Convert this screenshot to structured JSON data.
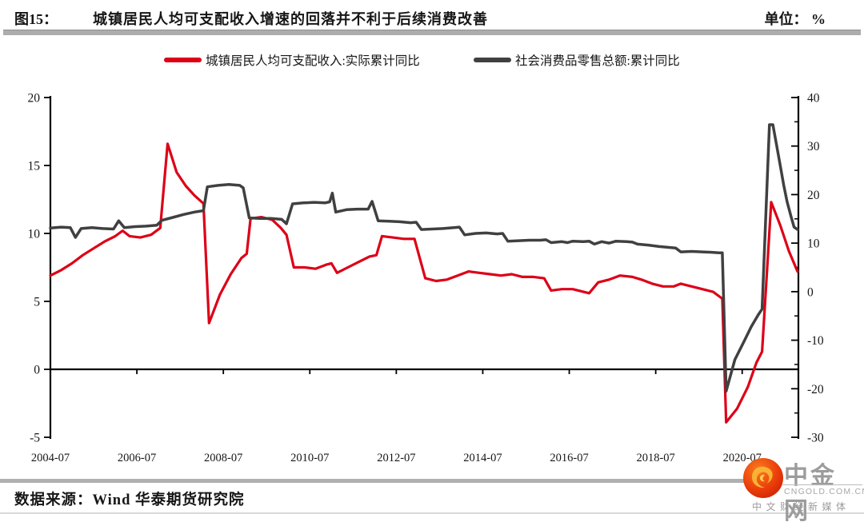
{
  "header": {
    "figure_label": "图15：",
    "title": "城镇居民人均可支配收入增速的回落并不利于后续消费改善",
    "unit_label": "单位： %"
  },
  "legend": {
    "items": [
      {
        "label": "城镇居民人均可支配收入:实际累计同比",
        "color": "#dd0017"
      },
      {
        "label": "社会消费品零售总额:累计同比",
        "color": "#404040"
      }
    ]
  },
  "chart_data": {
    "type": "line",
    "title": "城镇居民人均可支配收入增速的回落并不利于后续消费改善",
    "unit": "%",
    "x_min": 2004.5,
    "x_max": 2021.8,
    "x_ticks": [
      {
        "t": 2004.5,
        "label": "2004-07"
      },
      {
        "t": 2006.5,
        "label": "2006-07"
      },
      {
        "t": 2008.5,
        "label": "2008-07"
      },
      {
        "t": 2010.5,
        "label": "2010-07"
      },
      {
        "t": 2012.5,
        "label": "2012-07"
      },
      {
        "t": 2014.5,
        "label": "2014-07"
      },
      {
        "t": 2016.5,
        "label": "2016-07"
      },
      {
        "t": 2018.5,
        "label": "2018-07"
      },
      {
        "t": 2020.5,
        "label": "2020-07"
      }
    ],
    "left_axis": {
      "min": -5,
      "max": 20,
      "ticks": [
        20,
        15,
        10,
        5,
        0,
        -5
      ]
    },
    "right_axis": {
      "min": -30,
      "max": 40,
      "ticks": [
        40,
        30,
        20,
        10,
        0,
        -10,
        -20,
        -30
      ],
      "minor_ticks": [
        35,
        25,
        15,
        5,
        -5,
        -15,
        -25
      ]
    },
    "grid": false,
    "legend_position": "top",
    "series": [
      {
        "name": "城镇居民人均可支配收入:实际累计同比",
        "axis": "left",
        "color": "#dd0017",
        "points": [
          [
            2004.5,
            6.9
          ],
          [
            2004.75,
            7.3
          ],
          [
            2005.0,
            7.8
          ],
          [
            2005.25,
            8.4
          ],
          [
            2005.5,
            8.9
          ],
          [
            2005.75,
            9.4
          ],
          [
            2006.0,
            9.8
          ],
          [
            2006.17,
            10.2
          ],
          [
            2006.33,
            9.8
          ],
          [
            2006.58,
            9.7
          ],
          [
            2006.83,
            9.9
          ],
          [
            2007.04,
            10.4
          ],
          [
            2007.21,
            16.6
          ],
          [
            2007.42,
            14.5
          ],
          [
            2007.63,
            13.5
          ],
          [
            2007.83,
            12.8
          ],
          [
            2008.04,
            12.2
          ],
          [
            2008.17,
            3.4
          ],
          [
            2008.42,
            5.5
          ],
          [
            2008.67,
            7.0
          ],
          [
            2008.92,
            8.2
          ],
          [
            2009.04,
            8.5
          ],
          [
            2009.13,
            11.1
          ],
          [
            2009.38,
            11.2
          ],
          [
            2009.63,
            11.0
          ],
          [
            2009.83,
            10.4
          ],
          [
            2009.96,
            9.9
          ],
          [
            2010.13,
            7.5
          ],
          [
            2010.38,
            7.5
          ],
          [
            2010.63,
            7.4
          ],
          [
            2010.88,
            7.7
          ],
          [
            2011.0,
            7.8
          ],
          [
            2011.13,
            7.1
          ],
          [
            2011.38,
            7.5
          ],
          [
            2011.63,
            7.9
          ],
          [
            2011.88,
            8.3
          ],
          [
            2012.04,
            8.4
          ],
          [
            2012.17,
            9.8
          ],
          [
            2012.42,
            9.7
          ],
          [
            2012.67,
            9.6
          ],
          [
            2012.92,
            9.6
          ],
          [
            2013.17,
            6.7
          ],
          [
            2013.42,
            6.5
          ],
          [
            2013.67,
            6.6
          ],
          [
            2013.92,
            6.9
          ],
          [
            2014.17,
            7.2
          ],
          [
            2014.42,
            7.1
          ],
          [
            2014.67,
            7.0
          ],
          [
            2014.92,
            6.9
          ],
          [
            2015.17,
            7.0
          ],
          [
            2015.42,
            6.8
          ],
          [
            2015.67,
            6.8
          ],
          [
            2015.92,
            6.7
          ],
          [
            2016.08,
            5.8
          ],
          [
            2016.33,
            5.9
          ],
          [
            2016.58,
            5.9
          ],
          [
            2016.83,
            5.7
          ],
          [
            2016.96,
            5.6
          ],
          [
            2017.17,
            6.4
          ],
          [
            2017.42,
            6.6
          ],
          [
            2017.67,
            6.9
          ],
          [
            2017.96,
            6.8
          ],
          [
            2018.17,
            6.6
          ],
          [
            2018.42,
            6.3
          ],
          [
            2018.67,
            6.1
          ],
          [
            2018.92,
            6.1
          ],
          [
            2019.08,
            6.3
          ],
          [
            2019.33,
            6.1
          ],
          [
            2019.58,
            5.9
          ],
          [
            2019.83,
            5.7
          ],
          [
            2020.04,
            5.2
          ],
          [
            2020.13,
            -3.9
          ],
          [
            2020.38,
            -2.9
          ],
          [
            2020.63,
            -1.3
          ],
          [
            2020.83,
            0.5
          ],
          [
            2020.96,
            1.3
          ],
          [
            2021.17,
            12.3
          ],
          [
            2021.38,
            10.6
          ],
          [
            2021.58,
            8.7
          ],
          [
            2021.78,
            7.2
          ]
        ]
      },
      {
        "name": "社会消费品零售总额:累计同比",
        "axis": "right",
        "color": "#404040",
        "points": [
          [
            2004.5,
            13.1
          ],
          [
            2004.75,
            13.3
          ],
          [
            2004.96,
            13.2
          ],
          [
            2005.08,
            11.2
          ],
          [
            2005.21,
            13.0
          ],
          [
            2005.46,
            13.2
          ],
          [
            2005.71,
            13.0
          ],
          [
            2005.96,
            12.9
          ],
          [
            2006.08,
            14.6
          ],
          [
            2006.21,
            13.2
          ],
          [
            2006.46,
            13.4
          ],
          [
            2006.71,
            13.5
          ],
          [
            2006.96,
            13.7
          ],
          [
            2007.08,
            14.7
          ],
          [
            2007.33,
            15.3
          ],
          [
            2007.58,
            15.9
          ],
          [
            2007.83,
            16.4
          ],
          [
            2008.04,
            16.7
          ],
          [
            2008.13,
            21.6
          ],
          [
            2008.38,
            21.9
          ],
          [
            2008.63,
            22.1
          ],
          [
            2008.88,
            21.9
          ],
          [
            2008.96,
            21.4
          ],
          [
            2009.1,
            15.2
          ],
          [
            2009.35,
            15.1
          ],
          [
            2009.6,
            15.1
          ],
          [
            2009.85,
            14.9
          ],
          [
            2009.96,
            14.0
          ],
          [
            2010.1,
            18.1
          ],
          [
            2010.35,
            18.3
          ],
          [
            2010.6,
            18.4
          ],
          [
            2010.85,
            18.3
          ],
          [
            2010.96,
            18.5
          ],
          [
            2011.02,
            20.3
          ],
          [
            2011.1,
            16.4
          ],
          [
            2011.35,
            16.9
          ],
          [
            2011.6,
            17.0
          ],
          [
            2011.85,
            17.0
          ],
          [
            2011.94,
            18.6
          ],
          [
            2012.08,
            14.6
          ],
          [
            2012.33,
            14.5
          ],
          [
            2012.58,
            14.4
          ],
          [
            2012.83,
            14.2
          ],
          [
            2012.96,
            14.3
          ],
          [
            2013.08,
            12.8
          ],
          [
            2013.33,
            12.9
          ],
          [
            2013.58,
            13.0
          ],
          [
            2013.83,
            13.2
          ],
          [
            2013.96,
            13.3
          ],
          [
            2014.08,
            11.7
          ],
          [
            2014.33,
            12.0
          ],
          [
            2014.58,
            12.1
          ],
          [
            2014.83,
            11.9
          ],
          [
            2014.96,
            12.0
          ],
          [
            2015.08,
            10.4
          ],
          [
            2015.33,
            10.5
          ],
          [
            2015.58,
            10.6
          ],
          [
            2015.83,
            10.6
          ],
          [
            2015.96,
            10.7
          ],
          [
            2016.08,
            10.1
          ],
          [
            2016.33,
            10.3
          ],
          [
            2016.46,
            10.1
          ],
          [
            2016.58,
            10.4
          ],
          [
            2016.83,
            10.3
          ],
          [
            2016.96,
            10.4
          ],
          [
            2017.08,
            9.8
          ],
          [
            2017.25,
            10.3
          ],
          [
            2017.42,
            10.0
          ],
          [
            2017.58,
            10.4
          ],
          [
            2017.83,
            10.3
          ],
          [
            2017.96,
            10.2
          ],
          [
            2018.08,
            9.8
          ],
          [
            2018.33,
            9.6
          ],
          [
            2018.58,
            9.3
          ],
          [
            2018.83,
            9.1
          ],
          [
            2018.96,
            9.0
          ],
          [
            2019.08,
            8.2
          ],
          [
            2019.33,
            8.3
          ],
          [
            2019.58,
            8.2
          ],
          [
            2019.83,
            8.1
          ],
          [
            2019.96,
            8.0
          ],
          [
            2020.04,
            8.0
          ],
          [
            2020.13,
            -20.5
          ],
          [
            2020.33,
            -14.0
          ],
          [
            2020.54,
            -10.3
          ],
          [
            2020.71,
            -7.2
          ],
          [
            2020.87,
            -4.8
          ],
          [
            2020.96,
            -3.6
          ],
          [
            2021.13,
            34.4
          ],
          [
            2021.21,
            34.4
          ],
          [
            2021.29,
            30.5
          ],
          [
            2021.38,
            26.0
          ],
          [
            2021.46,
            22.0
          ],
          [
            2021.54,
            18.5
          ],
          [
            2021.63,
            15.5
          ],
          [
            2021.7,
            13.3
          ],
          [
            2021.78,
            12.8
          ]
        ]
      }
    ]
  },
  "footer": {
    "source": "数据来源：Wind 华泰期货研究院"
  },
  "logo": {
    "name": "中金网",
    "domain": "CNGOLD.COM.CN",
    "tagline": "中文财经新媒体"
  }
}
